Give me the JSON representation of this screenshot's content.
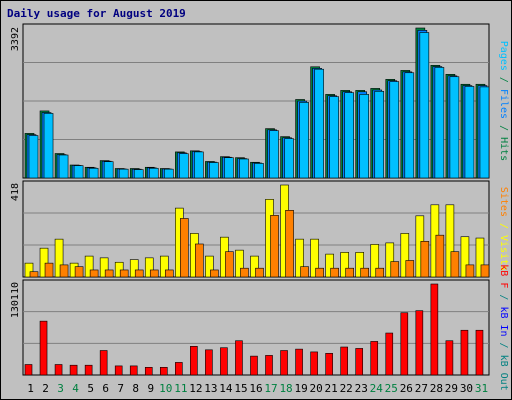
{
  "chart_data": {
    "type": "bar",
    "title": "Daily usage for August 2019",
    "categories": [
      "1",
      "2",
      "3",
      "4",
      "5",
      "6",
      "7",
      "8",
      "9",
      "10",
      "11",
      "12",
      "13",
      "14",
      "15",
      "16",
      "17",
      "18",
      "19",
      "20",
      "21",
      "22",
      "23",
      "24",
      "25",
      "26",
      "27",
      "28",
      "29",
      "30",
      "31"
    ],
    "weekend_days": [
      "3",
      "4",
      "10",
      "11",
      "17",
      "18",
      "24",
      "25",
      "31"
    ],
    "colors": {
      "pages": "#00c0ff",
      "files": "#0080ff",
      "hits": "#008040",
      "visits": "#ffff00",
      "sites": "#ff8000",
      "kb_out": "#008080",
      "kb_in": "#0000ff",
      "kb_f": "#ff0000",
      "weekday_label": "#000000",
      "weekend_label": "#008040",
      "title": "#000080"
    },
    "panels": [
      {
        "id": "hits",
        "ymax_label": "3392",
        "ylim": [
          0,
          3392
        ],
        "side_label_parts": [
          {
            "text": "Pages",
            "color_key": "pages"
          },
          {
            "text": " / ",
            "color_key": "hits"
          },
          {
            "text": "Files",
            "color_key": "files"
          },
          {
            "text": " / ",
            "color_key": "hits"
          },
          {
            "text": "Hits",
            "color_key": "hits"
          }
        ],
        "series": [
          {
            "name": "Hits",
            "color_key": "hits",
            "values": [
              1009,
              1517,
              554,
              294,
              243,
              394,
              215,
              215,
              243,
              215,
              590,
              615,
              374,
              483,
              460,
              356,
              1117,
              936,
              1776,
              2515,
              1891,
              1981,
              1981,
              2026,
              2231,
              2433,
              3392,
              2548,
              2345,
              2120,
              2120
            ]
          },
          {
            "name": "Files",
            "color_key": "files",
            "values": [
              980,
              1480,
              530,
              285,
              230,
              380,
              205,
              200,
              230,
              205,
              570,
              600,
              360,
              470,
              440,
              340,
              1090,
              910,
              1740,
              2480,
              1860,
              1950,
              1950,
              1990,
              2200,
              2400,
              3340,
              2520,
              2310,
              2090,
              2090
            ]
          },
          {
            "name": "Pages",
            "color_key": "pages",
            "values": [
              960,
              1460,
              520,
              280,
              220,
              370,
              200,
              190,
              220,
              200,
              550,
              590,
              350,
              460,
              430,
              330,
              1070,
              890,
              1710,
              2460,
              1840,
              1930,
              1890,
              1960,
              2180,
              2380,
              3290,
              2500,
              2290,
              2070,
              2060
            ]
          }
        ]
      },
      {
        "id": "visits",
        "ymax_label": "418",
        "ylim": [
          0,
          418
        ],
        "side_label_parts": [
          {
            "text": "Sites",
            "color_key": "sites"
          },
          {
            "text": " / ",
            "color_key": "visits"
          },
          {
            "text": "Visits",
            "color_key": "visits"
          }
        ],
        "series": [
          {
            "name": "Visits",
            "color_key": "visits",
            "values": [
              63,
              131,
              172,
              63,
              95,
              87,
              67,
              79,
              87,
              95,
              313,
              198,
              95,
              181,
              122,
              95,
              353,
              418,
              172,
              172,
              104,
              112,
              112,
              148,
              155,
              198,
              278,
              328,
              328,
              183,
              177
            ]
          },
          {
            "name": "Sites",
            "color_key": "sites",
            "values": [
              24,
              63,
              55,
              47,
              32,
              32,
              32,
              32,
              32,
              32,
              266,
              150,
              32,
              115,
              40,
              40,
              280,
              303,
              47,
              40,
              40,
              40,
              40,
              40,
              70,
              75,
              162,
              190,
              115,
              55,
              55
            ]
          }
        ]
      },
      {
        "id": "kb",
        "ymax_label": "130110",
        "ylim": [
          0,
          130110
        ],
        "side_label_parts": [
          {
            "text": "kB F",
            "color_key": "kb_f"
          },
          {
            "text": " / ",
            "color_key": "kb_out"
          },
          {
            "text": "kB In",
            "color_key": "kb_in"
          },
          {
            "text": " / ",
            "color_key": "kb_out"
          },
          {
            "text": "kB Out",
            "color_key": "kb_out"
          }
        ],
        "series": [
          {
            "name": "kB F",
            "color_key": "kb_f",
            "values": [
              15000,
              77000,
              15000,
              14000,
              14000,
              35000,
              13000,
              13000,
              11000,
              11000,
              18000,
              41000,
              36000,
              39000,
              49000,
              27000,
              28000,
              35000,
              37000,
              33000,
              31000,
              40000,
              38000,
              48000,
              60000,
              89000,
              92000,
              130110,
              49000,
              64000,
              64000
            ]
          }
        ]
      }
    ]
  }
}
